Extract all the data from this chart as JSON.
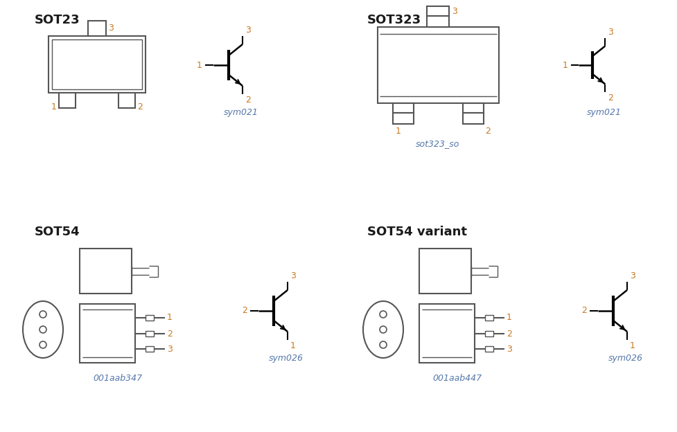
{
  "title_color": "#1a1a1a",
  "label_color": "#c87820",
  "sym_color": "#5577aa",
  "line_color": "#555555",
  "bg_color": "#ffffff",
  "titles": [
    "SOT23",
    "SOT323",
    "SOT54",
    "SOT54 variant"
  ],
  "sym_labels": [
    "sym021",
    "sym021",
    "sym026",
    "sym026"
  ],
  "pkg_labels_bottom": [
    "sot323_so",
    "001aab347",
    "001aab447"
  ],
  "title_fontsize": 13,
  "label_fontsize": 9,
  "sym_fontsize": 9,
  "pkg_fontsize": 9
}
